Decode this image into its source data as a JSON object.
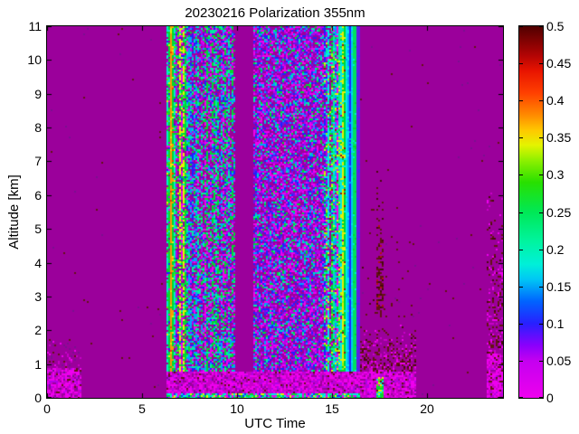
{
  "figure": {
    "background": "#ffffff"
  },
  "chart_data": {
    "type": "heatmap",
    "title": "20230216 Polarization 355nm",
    "xlabel": "UTC Time",
    "ylabel": "Altitude [km]",
    "xlim": [
      0,
      24
    ],
    "ylim": [
      0,
      11
    ],
    "grid": false,
    "x_ticks": [
      0,
      5,
      10,
      15,
      20
    ],
    "x_tick_labels": [
      "0",
      "5",
      "10",
      "15",
      "20"
    ],
    "y_ticks": [
      0,
      1,
      2,
      3,
      4,
      5,
      6,
      7,
      8,
      9,
      10,
      11
    ],
    "y_tick_labels": [
      "0",
      "1",
      "2",
      "3",
      "4",
      "5",
      "6",
      "7",
      "8",
      "9",
      "10",
      "11"
    ],
    "colorbar": {
      "min": 0,
      "max": 0.5,
      "ticks": [
        0,
        0.05,
        0.1,
        0.15,
        0.2,
        0.25,
        0.3,
        0.35,
        0.4,
        0.45,
        0.5
      ],
      "tick_labels": [
        "0",
        "0.05",
        "0.1",
        "0.15",
        "0.2",
        "0.25",
        "0.3",
        "0.35",
        "0.4",
        "0.45",
        "0.5"
      ],
      "stops": [
        [
          0.0,
          "#ee00ee"
        ],
        [
          0.05,
          "#c400f0"
        ],
        [
          0.07,
          "#8c00fc"
        ],
        [
          0.1,
          "#2820ff"
        ],
        [
          0.13,
          "#0064ff"
        ],
        [
          0.16,
          "#00c8f4"
        ],
        [
          0.18,
          "#00f0d8"
        ],
        [
          0.21,
          "#00f4a0"
        ],
        [
          0.25,
          "#00e856"
        ],
        [
          0.29,
          "#28e000"
        ],
        [
          0.32,
          "#90f000"
        ],
        [
          0.34,
          "#e4f400"
        ],
        [
          0.36,
          "#ffc800"
        ],
        [
          0.38,
          "#ff8c00"
        ],
        [
          0.41,
          "#ff4000"
        ],
        [
          0.44,
          "#e81400"
        ],
        [
          0.46,
          "#b40404"
        ],
        [
          0.5,
          "#500000"
        ]
      ]
    },
    "background_value": 0.02,
    "value_colors": {
      "0": "#ee00ee",
      "0.01": "#c800c8",
      "0.02": "#9b009b",
      "0.04": "#7a1090",
      "0.05": "#b400e8",
      "0.07": "#6418e8",
      "0.08": "#4028f0",
      "0.1": "#2020ff",
      "0.12": "#1468ff",
      "0.15": "#00a0ff",
      "0.16": "#00c8f0",
      "0.17": "#00e8e8",
      "0.18": "#00ecc8",
      "0.2": "#00eca0",
      "0.22": "#00e060",
      "0.25": "#00d830",
      "0.3": "#58e800",
      "0.32": "#a8f000",
      "0.33": "#e8f000",
      "0.36": "#ff9800",
      "0.4": "#ff3000",
      "0.43": "#b81010",
      "0.45": "#981010",
      "0.46": "#641212",
      "0.48": "#480a0a"
    },
    "regions": [
      {
        "name": "background",
        "t": [
          0,
          24
        ],
        "a": [
          0,
          11
        ],
        "p": [
          [
            "0.02",
            0.997
          ],
          [
            "0.46",
            0.0015
          ],
          [
            "0.04",
            0.0015
          ]
        ]
      },
      {
        "name": "left-low-speckle",
        "t": [
          0,
          1.85
        ],
        "a": [
          0,
          2.4
        ],
        "fade": true,
        "p": [
          [
            "0.02",
            0.55
          ],
          [
            "0.01",
            0.16
          ],
          [
            "0",
            0.1
          ],
          [
            "0.04",
            0.1
          ],
          [
            "0.46",
            0.09
          ]
        ]
      },
      {
        "name": "left-low-bright",
        "t": [
          0,
          1.85
        ],
        "a": [
          0,
          0.9
        ],
        "p": [
          [
            "0",
            0.4
          ],
          [
            "0.01",
            0.3
          ],
          [
            "0.02",
            0.12
          ],
          [
            "0.05",
            0.08
          ],
          [
            "0.04",
            0.05
          ],
          [
            "0.46",
            0.05
          ]
        ]
      },
      {
        "name": "green-column",
        "t": [
          6.3,
          7.35
        ],
        "a": [
          0,
          11
        ],
        "streak": 0.5,
        "p": [
          [
            "0.25",
            0.3
          ],
          [
            "0.22",
            0.1
          ],
          [
            "0.18",
            0.1
          ],
          [
            "0.3",
            0.07
          ],
          [
            "0.33",
            0.05
          ],
          [
            "0.02",
            0.22
          ],
          [
            "0",
            0.06
          ],
          [
            "0.1",
            0.05
          ],
          [
            "0.05",
            0.05
          ]
        ]
      },
      {
        "name": "orange-line",
        "t": [
          6.52,
          6.62
        ],
        "a": [
          0,
          11
        ],
        "streak": 0.7,
        "p": [
          [
            "0.36",
            0.45
          ],
          [
            "0.33",
            0.3
          ],
          [
            "0.25",
            0.15
          ],
          [
            "0.4",
            0.1
          ]
        ]
      },
      {
        "name": "speckle-mix-1",
        "t": [
          7.35,
          9.9
        ],
        "a": [
          0,
          11
        ],
        "streak": 0.25,
        "p": [
          [
            "0.02",
            0.24
          ],
          [
            "0",
            0.12
          ],
          [
            "0.05",
            0.12
          ],
          [
            "0.1",
            0.11
          ],
          [
            "0.15",
            0.13
          ],
          [
            "0.2",
            0.12
          ],
          [
            "0.25",
            0.13
          ],
          [
            "0.07",
            0.03
          ]
        ]
      },
      {
        "name": "data-gap",
        "t": [
          9.9,
          10.85
        ],
        "a": [
          0,
          11
        ],
        "p": [
          [
            "0.02",
            1
          ]
        ]
      },
      {
        "name": "speckle-mix-2",
        "t": [
          10.85,
          14.6
        ],
        "a": [
          0,
          11
        ],
        "p": [
          [
            "0.02",
            0.28
          ],
          [
            "0",
            0.16
          ],
          [
            "0.05",
            0.15
          ],
          [
            "0.07",
            0.11
          ],
          [
            "0.1",
            0.09
          ],
          [
            "0.15",
            0.09
          ],
          [
            "0.2",
            0.07
          ],
          [
            "0.25",
            0.05
          ]
        ]
      },
      {
        "name": "cyan-zone",
        "t": [
          14.6,
          15.3
        ],
        "a": [
          0,
          11
        ],
        "streak": 0.45,
        "p": [
          [
            "0.17",
            0.17
          ],
          [
            "0.2",
            0.13
          ],
          [
            "0.25",
            0.13
          ],
          [
            "0.32",
            0.09
          ],
          [
            "0.33",
            0.08
          ],
          [
            "0.02",
            0.12
          ],
          [
            "0",
            0.07
          ],
          [
            "0.1",
            0.07
          ],
          [
            "0.05",
            0.06
          ],
          [
            "0.15",
            0.06
          ],
          [
            "0.45",
            0.02
          ]
        ]
      },
      {
        "name": "stripe-yellow-green",
        "t": [
          15.3,
          15.62
        ],
        "a": [
          0,
          11
        ],
        "streak": 0.6,
        "p": [
          [
            "0.33",
            0.32
          ],
          [
            "0.25",
            0.22
          ],
          [
            "0.17",
            0.18
          ],
          [
            "0.2",
            0.1
          ],
          [
            "0.32",
            0.08
          ],
          [
            "0.45",
            0.04
          ],
          [
            "0.02",
            0.06
          ]
        ]
      },
      {
        "name": "stripe-darkred",
        "t": [
          15.62,
          15.71
        ],
        "a": [
          0,
          11
        ],
        "streak": 0.7,
        "p": [
          [
            "0.45",
            0.38
          ],
          [
            "0.33",
            0.25
          ],
          [
            "0.25",
            0.2
          ],
          [
            "0.17",
            0.17
          ]
        ]
      },
      {
        "name": "stripe-cyan-1",
        "t": [
          15.71,
          15.9
        ],
        "a": [
          0,
          11
        ],
        "streak": 0.75,
        "p": [
          [
            "0.17",
            0.6
          ],
          [
            "0.15",
            0.2
          ],
          [
            "0.2",
            0.2
          ]
        ]
      },
      {
        "name": "stripe-blue-thin",
        "t": [
          15.9,
          15.96
        ],
        "a": [
          0,
          11
        ],
        "streak": 0.85,
        "p": [
          [
            "0.1",
            0.75
          ],
          [
            "0.15",
            0.25
          ]
        ]
      },
      {
        "name": "stripe-cyan-2",
        "t": [
          15.96,
          16.1
        ],
        "a": [
          0,
          11
        ],
        "streak": 0.8,
        "p": [
          [
            "0.17",
            0.6
          ],
          [
            "0.16",
            0.25
          ],
          [
            "0.2",
            0.15
          ]
        ]
      },
      {
        "name": "stripe-green",
        "t": [
          16.1,
          16.24
        ],
        "a": [
          0,
          11
        ],
        "streak": 0.8,
        "p": [
          [
            "0.22",
            0.45
          ],
          [
            "0.25",
            0.35
          ],
          [
            "0.18",
            0.2
          ]
        ]
      },
      {
        "name": "stripe-blue",
        "t": [
          16.24,
          16.33
        ],
        "a": [
          0,
          11
        ],
        "streak": 0.85,
        "p": [
          [
            "0.1",
            0.7
          ],
          [
            "0.08",
            0.3
          ]
        ]
      },
      {
        "name": "stripe-indigo",
        "t": [
          16.33,
          16.45
        ],
        "a": [
          0,
          11
        ],
        "streak": 0.85,
        "p": [
          [
            "0.08",
            0.55
          ],
          [
            "0.07",
            0.45
          ]
        ]
      },
      {
        "name": "right-sparse-dots",
        "t": [
          16.45,
          19.3
        ],
        "a": [
          0,
          7.5
        ],
        "fade": true,
        "p": [
          [
            "0.02",
            0.93
          ],
          [
            "0.46",
            0.05
          ],
          [
            "0.48",
            0.01
          ],
          [
            "0.04",
            0.01
          ]
        ]
      },
      {
        "name": "maroon-column",
        "t": [
          17.3,
          17.68
        ],
        "a": [
          0.4,
          7
        ],
        "fade": true,
        "p": [
          [
            "0.02",
            0.3
          ],
          [
            "0.46",
            0.42
          ],
          [
            "0.48",
            0.18
          ],
          [
            "0.43",
            0.1
          ]
        ]
      },
      {
        "name": "right-low-dark",
        "t": [
          16.45,
          19.4
        ],
        "a": [
          0.7,
          2.4
        ],
        "fade": true,
        "p": [
          [
            "0.02",
            0.45
          ],
          [
            "0.46",
            0.22
          ],
          [
            "0.48",
            0.08
          ],
          [
            "0",
            0.13
          ],
          [
            "0.01",
            0.12
          ]
        ]
      },
      {
        "name": "surface-bright-band",
        "t": [
          6.3,
          19.4
        ],
        "a": [
          0,
          0.8
        ],
        "p": [
          [
            "0",
            0.38
          ],
          [
            "0.01",
            0.3
          ],
          [
            "0.02",
            0.12
          ],
          [
            "0.05",
            0.12
          ],
          [
            "0.04",
            0.04
          ],
          [
            "0.46",
            0.04
          ]
        ]
      },
      {
        "name": "surface-row",
        "t": [
          6.3,
          16.45
        ],
        "a": [
          0,
          0.14
        ],
        "p": [
          [
            "0.25",
            0.22
          ],
          [
            "0.17",
            0.18
          ],
          [
            "0",
            0.22
          ],
          [
            "0.1",
            0.12
          ],
          [
            "0.33",
            0.12
          ],
          [
            "0.2",
            0.14
          ]
        ]
      },
      {
        "name": "maroon-column-surface",
        "t": [
          17.3,
          17.68
        ],
        "a": [
          0,
          0.6
        ],
        "p": [
          [
            "0.25",
            0.28
          ],
          [
            "0.3",
            0.18
          ],
          [
            "0.33",
            0.14
          ],
          [
            "0.17",
            0.14
          ],
          [
            "0.46",
            0.12
          ],
          [
            "0",
            0.14
          ]
        ]
      },
      {
        "name": "right-edge-column",
        "t": [
          23.15,
          24
        ],
        "a": [
          0,
          7.2
        ],
        "fade": true,
        "p": [
          [
            "0.02",
            0.52
          ],
          [
            "0.46",
            0.22
          ],
          [
            "0.48",
            0.06
          ],
          [
            "0",
            0.1
          ],
          [
            "0.01",
            0.1
          ]
        ]
      },
      {
        "name": "right-edge-bottom",
        "t": [
          23.15,
          24
        ],
        "a": [
          0,
          1.3
        ],
        "p": [
          [
            "0",
            0.45
          ],
          [
            "0.01",
            0.25
          ],
          [
            "0.02",
            0.12
          ],
          [
            "0.05",
            0.1
          ],
          [
            "0.46",
            0.08
          ]
        ]
      }
    ]
  }
}
